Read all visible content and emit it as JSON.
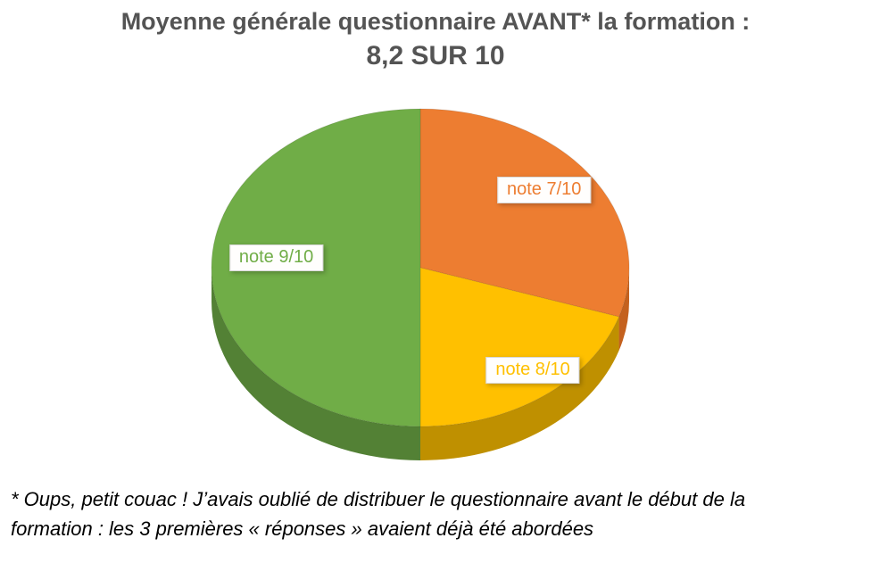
{
  "title": {
    "line1": "Moyenne générale questionnaire AVANT* la formation :",
    "line2": "8,2 SUR 10"
  },
  "footnote": {
    "line1": "* Oups, petit couac ! J’avais oublié de distribuer le questionnaire avant le début de la",
    "line2": "formation : les 3 premières « réponses » avaient déjà été abordées"
  },
  "chart_data": {
    "type": "pie",
    "style": "3d",
    "title": "Moyenne générale questionnaire AVANT* la formation : 8,2 SUR 10",
    "average_shown": "8,2 SUR 10",
    "labels": [
      "note 7/10",
      "note 8/10",
      "note 9/10"
    ],
    "values": [
      30,
      20,
      50
    ],
    "values_unit": "percent",
    "start_angle_deg": 0,
    "direction": "clockwise",
    "colors": [
      "#ED7D31",
      "#FFC000",
      "#70AD47"
    ],
    "side_colors": [
      "#C4611E",
      "#BF9000",
      "#538135"
    ],
    "label_text_colors": [
      "#ED7D31",
      "#FFC000",
      "#70AD47"
    ],
    "label_background": "#FFFEFD",
    "legend": "none"
  }
}
